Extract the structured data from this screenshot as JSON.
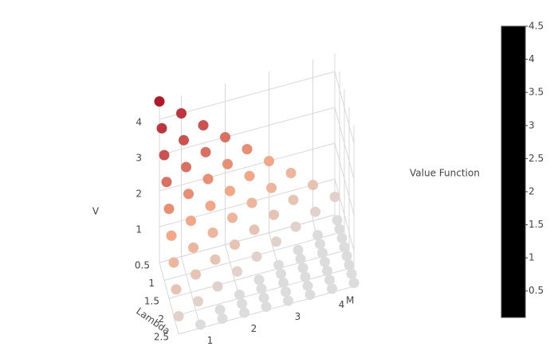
{
  "chart_data": {
    "type": "scatter3d",
    "name": "Value Function",
    "x_label": "Lambda",
    "y_label": "M",
    "z_label": "V",
    "x": [
      0.5,
      0.75,
      1,
      1.25,
      1.5,
      1.75,
      2,
      2.25,
      2.5
    ],
    "y": [
      0.5,
      1,
      1.5,
      2,
      2.5,
      3,
      3.5,
      4,
      4.5
    ],
    "z": [
      [
        4.5,
        4,
        3.5,
        3,
        2.5,
        2,
        1.5,
        1,
        0.5
      ],
      [
        4,
        3.5,
        3,
        2.5,
        2,
        1.5,
        1,
        0.5,
        0.1
      ],
      [
        3.5,
        3,
        2.5,
        2,
        1.5,
        1,
        0.5,
        0.1,
        0.1
      ],
      [
        3,
        2.5,
        2,
        1.5,
        1,
        0.5,
        0.1,
        0.1,
        0.1
      ],
      [
        2.5,
        2,
        1.5,
        1,
        0.5,
        0.1,
        0.1,
        0.1,
        0.1
      ],
      [
        2,
        1.5,
        1,
        0.5,
        0.1,
        0.1,
        0.1,
        0.1,
        0.1
      ],
      [
        1.5,
        1,
        0.5,
        0.1,
        0.1,
        0.1,
        0.1,
        0.1,
        0.1
      ],
      [
        1,
        0.5,
        0.1,
        0.1,
        0.1,
        0.1,
        0.1,
        0.1,
        0.1
      ],
      [
        0.5,
        0.1,
        0.1,
        0.1,
        0.1,
        0.1,
        0.1,
        0.1,
        0.1
      ]
    ],
    "xlim": [
      0.5,
      2.5
    ],
    "ylim": [
      0.5,
      4.5
    ],
    "zlim": [
      0,
      4.5
    ],
    "xticks": [
      0.5,
      1,
      1.5,
      2,
      2.5
    ],
    "yticks": [
      1,
      2,
      3,
      4
    ],
    "zticks": [
      1,
      2,
      3,
      4
    ],
    "colorscale": [
      [
        0,
        "#dcdcdc"
      ],
      [
        0.45,
        "#f4a582"
      ],
      [
        1,
        "#b2182b"
      ]
    ],
    "colorbar": {
      "range": [
        0.1,
        4.5
      ],
      "ticks": [
        0.5,
        1,
        1.5,
        2,
        2.5,
        3,
        3.5,
        4,
        4.5
      ],
      "color": "#000000"
    },
    "grid": true
  }
}
